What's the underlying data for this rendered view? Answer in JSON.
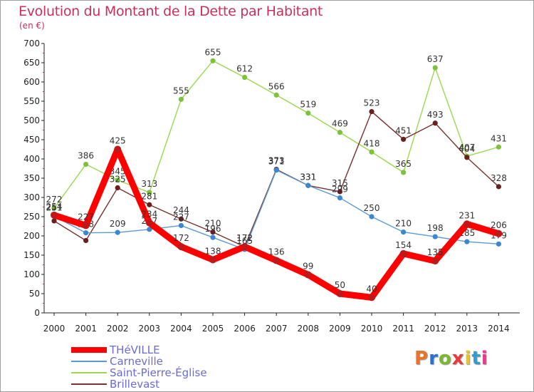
{
  "header": {
    "title": "Evolution du Montant de la Dette par Habitant",
    "subtitle": "(en €)"
  },
  "logo": {
    "text": "Proxiti",
    "letter_colors": [
      "#e8742a",
      "#2e6fd1",
      "#7ab82e",
      "#e83a3a",
      "#e8c42a",
      "#2e9ed1",
      "#e83a8a"
    ]
  },
  "chart_data": {
    "type": "line",
    "x": [
      "2000",
      "2001",
      "2002",
      "2003",
      "2004",
      "2005",
      "2006",
      "2007",
      "2008",
      "2009",
      "2010",
      "2011",
      "2012",
      "2013",
      "2014"
    ],
    "ylim": [
      0,
      700
    ],
    "yticks": [
      0,
      50,
      100,
      150,
      200,
      250,
      300,
      350,
      400,
      450,
      500,
      550,
      600,
      650,
      700
    ],
    "grid": false,
    "legend_position": "bottom-left",
    "series": [
      {
        "name": "Saint-Pierre-Église",
        "color": "#9ad84e",
        "marker": "#7cc23a",
        "values": [
          272,
          386,
          345,
          313,
          555,
          655,
          612,
          566,
          519,
          469,
          418,
          365,
          637,
          407,
          431
        ],
        "labels": [
          "272",
          "386",
          "345",
          "313",
          "555",
          "655",
          "612",
          "566",
          "519",
          "469",
          "418",
          "365",
          "637",
          "407",
          "431"
        ]
      },
      {
        "name": "Brillevast",
        "color": "#7a3030",
        "marker": "#6a1e1e",
        "values": [
          239,
          188,
          325,
          281,
          244,
          210,
          172,
          373,
          331,
          315,
          523,
          451,
          493,
          404,
          328
        ],
        "labels": [
          "",
          "",
          "325",
          "281",
          "244",
          "210",
          "172",
          "373",
          "331",
          "315",
          "523",
          "451",
          "493",
          "404",
          "328"
        ]
      },
      {
        "name": "Carneville",
        "color": "#5b9ad6",
        "marker": "#3c88d0",
        "values": [
          251,
          208,
          209,
          217,
          227,
          196,
          165,
          371,
          331,
          299,
          250,
          210,
          198,
          185,
          179
        ],
        "labels": [
          "251",
          "208",
          "209",
          "217",
          "227",
          "196",
          "165",
          "371",
          "331",
          "299",
          "250",
          "210",
          "198",
          "185",
          "179"
        ]
      },
      {
        "name": "THéVILLE",
        "color": "#ff0000",
        "marker": "#c01818",
        "values": [
          254,
          227,
          425,
          234,
          172,
          138,
          172,
          136,
          99,
          50,
          40,
          154,
          135,
          231,
          206
        ],
        "labels": [
          "254",
          "227",
          "425",
          "234",
          "172",
          "138",
          "172",
          "136",
          "99",
          "50",
          "40",
          "154",
          "135",
          "231",
          "206"
        ]
      }
    ]
  },
  "legend": {
    "items": [
      {
        "label": "THéVILLE",
        "color": "#ff0000",
        "thickness": 8
      },
      {
        "label": "Carneville",
        "color": "#5b9ad6",
        "thickness": 2
      },
      {
        "label": "Saint-Pierre-Église",
        "color": "#9ad84e",
        "thickness": 2
      },
      {
        "label": "Brillevast",
        "color": "#7a3030",
        "thickness": 2
      }
    ]
  }
}
